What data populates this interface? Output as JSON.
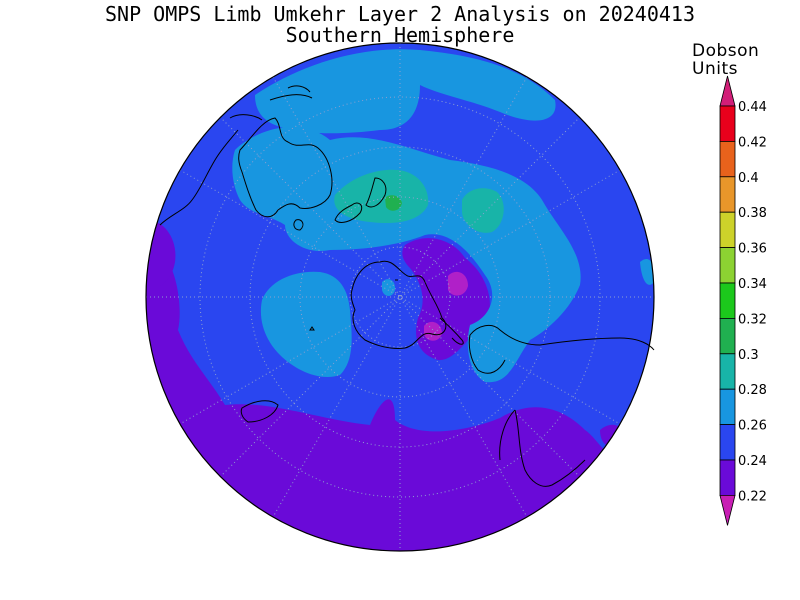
{
  "header": {
    "title": "SNP OMPS Limb Umkehr Layer 2 Analysis on 20240413",
    "subtitle": "Southern Hemisphere"
  },
  "legend": {
    "unit_line1": "Dobson",
    "unit_line2": "Units",
    "levels": [
      "0.44",
      "0.42",
      "0.4",
      "0.38",
      "0.36",
      "0.34",
      "0.32",
      "0.3",
      "0.28",
      "0.26",
      "0.24",
      "0.22"
    ],
    "colors": [
      "#e8001c",
      "#e8621c",
      "#e8962a",
      "#cdd22a",
      "#8cd232",
      "#1cc81c",
      "#20b050",
      "#18b4a8",
      "#1896e0",
      "#2a46f0",
      "#6a0ad8"
    ],
    "top_arrow_color": "#d21e78",
    "bottom_arrow_color": "#c81eb4"
  },
  "map_colors": {
    "base": "#2a46f0",
    "purple": "#6a0ad8",
    "light_blue": "#1896e0",
    "teal": "#18b4a8",
    "green": "#20b050",
    "magenta": "#b020c8"
  }
}
